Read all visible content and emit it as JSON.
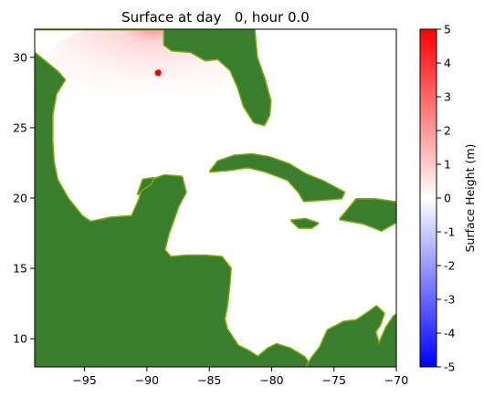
{
  "chart_data": {
    "type": "heatmap",
    "title": "Surface at day   0, hour 0.0",
    "xlabel": "",
    "ylabel": "",
    "xlim": [
      -99,
      -70
    ],
    "ylim": [
      8,
      32
    ],
    "x_ticks": [
      -95,
      -90,
      -85,
      -80,
      -75,
      -70
    ],
    "x_tick_labels": [
      "−95",
      "−90",
      "−85",
      "−80",
      "−75",
      "−70"
    ],
    "y_ticks": [
      10,
      15,
      20,
      25,
      30
    ],
    "y_tick_labels": [
      "10",
      "15",
      "20",
      "25",
      "30"
    ],
    "colorbar": {
      "label": "Surface Height (m)",
      "range": [
        -5,
        5
      ],
      "ticks": [
        5,
        4,
        3,
        2,
        1,
        0,
        -1,
        -2,
        -3,
        -4,
        -5
      ],
      "tick_labels": [
        "5",
        "4",
        "3",
        "2",
        "1",
        "0",
        "-1",
        "-2",
        "-3",
        "-4",
        "-5"
      ],
      "colormap": "bwr"
    },
    "marker": {
      "lon": -89.1,
      "lat": 28.9,
      "color": "#ff0000"
    },
    "surface_peak": {
      "lon": -89.5,
      "lat": 29.9,
      "max_height_m": 0.6
    },
    "colors": {
      "land": "#3a7d2c",
      "coast": "#7fae0c",
      "water": "#ffffff"
    },
    "grid": false
  }
}
